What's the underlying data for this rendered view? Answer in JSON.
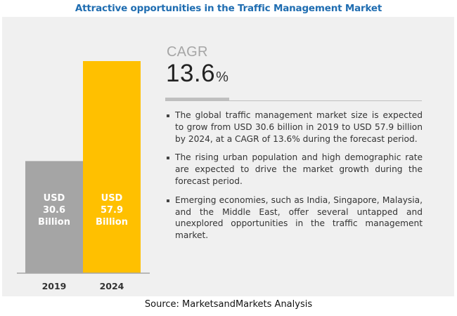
{
  "title": "Attractive opportunities in the Traffic Management Market",
  "chart_data": {
    "type": "bar",
    "title": "Attractive opportunities in the Traffic Management Market",
    "categories": [
      "2019",
      "2024"
    ],
    "values": [
      30.6,
      57.9
    ],
    "unit": "USD Billion",
    "bar_labels": [
      [
        "USD",
        "30.6",
        "Billion"
      ],
      [
        "USD",
        "57.9",
        "Billion"
      ]
    ],
    "colors": [
      "#a5a5a5",
      "#ffc000"
    ],
    "xlabel": "",
    "ylabel": "",
    "grid": false
  },
  "cagr": {
    "label": "CAGR",
    "value": "13.6",
    "unit": "%"
  },
  "bullets": [
    "The global traffic management market size is expected to grow from USD 30.6 billion in 2019 to USD 57.9 billion by 2024, at a CAGR of 13.6% during the forecast period.",
    "The rising urban population and high demographic rate are expected to drive the market growth during the forecast period.",
    "Emerging economies, such as India, Singapore, Malaysia, and the Middle East, offer several untapped and unexplored opportunities in the traffic management market."
  ],
  "source": "Source: MarketsandMarkets Analysis",
  "colors": {
    "title": "#1f6db1",
    "panel": "#f0f0f0",
    "bar_2019": "#a5a5a5",
    "bar_2024": "#ffc000"
  }
}
